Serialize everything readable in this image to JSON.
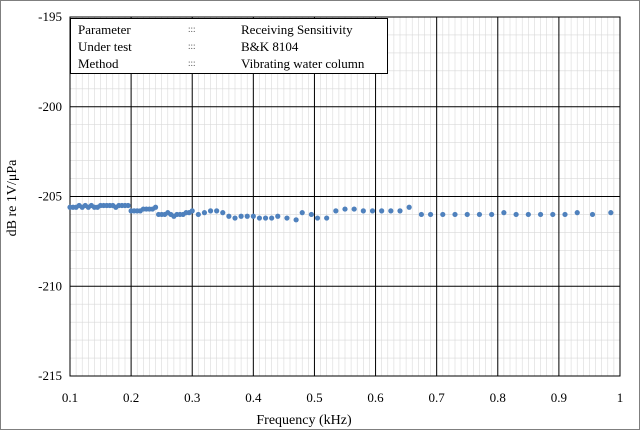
{
  "chart_data": {
    "type": "scatter",
    "xlabel": "Frequency (kHz)",
    "ylabel": "dB re 1V/μPa",
    "xlim": [
      0.1,
      1.0
    ],
    "ylim": [
      -215,
      -195
    ],
    "x_ticks": [
      "0.1",
      "0.2",
      "0.3",
      "0.4",
      "0.5",
      "0.6",
      "0.7",
      "0.8",
      "0.9",
      "1"
    ],
    "y_ticks": [
      "-195",
      "-200",
      "-205",
      "-210",
      "-215"
    ],
    "grid": "major and minor",
    "marker_color": "#4f81bd",
    "info_box": [
      {
        "key": "Parameter",
        "sep": ":::",
        "value": "Receiving Sensitivity"
      },
      {
        "key": "Under test",
        "sep": ":::",
        "value": "B&K 8104"
      },
      {
        "key": "Method",
        "sep": ":::",
        "value": "Vibrating water column"
      }
    ],
    "series": [
      {
        "points": [
          [
            0.1,
            -205.6
          ],
          [
            0.105,
            -205.6
          ],
          [
            0.11,
            -205.6
          ],
          [
            0.115,
            -205.5
          ],
          [
            0.12,
            -205.6
          ],
          [
            0.125,
            -205.5
          ],
          [
            0.13,
            -205.6
          ],
          [
            0.135,
            -205.5
          ],
          [
            0.14,
            -205.6
          ],
          [
            0.145,
            -205.6
          ],
          [
            0.15,
            -205.5
          ],
          [
            0.155,
            -205.5
          ],
          [
            0.16,
            -205.5
          ],
          [
            0.165,
            -205.5
          ],
          [
            0.17,
            -205.5
          ],
          [
            0.175,
            -205.6
          ],
          [
            0.18,
            -205.5
          ],
          [
            0.185,
            -205.5
          ],
          [
            0.19,
            -205.5
          ],
          [
            0.195,
            -205.5
          ],
          [
            0.2,
            -205.8
          ],
          [
            0.205,
            -205.8
          ],
          [
            0.21,
            -205.8
          ],
          [
            0.215,
            -205.8
          ],
          [
            0.22,
            -205.7
          ],
          [
            0.225,
            -205.7
          ],
          [
            0.23,
            -205.7
          ],
          [
            0.235,
            -205.7
          ],
          [
            0.24,
            -205.6
          ],
          [
            0.245,
            -206.0
          ],
          [
            0.25,
            -206.0
          ],
          [
            0.255,
            -206.0
          ],
          [
            0.26,
            -205.9
          ],
          [
            0.265,
            -206.0
          ],
          [
            0.27,
            -206.1
          ],
          [
            0.275,
            -206.0
          ],
          [
            0.28,
            -206.0
          ],
          [
            0.285,
            -206.0
          ],
          [
            0.29,
            -205.9
          ],
          [
            0.295,
            -205.9
          ],
          [
            0.3,
            -205.8
          ],
          [
            0.31,
            -206.0
          ],
          [
            0.32,
            -205.9
          ],
          [
            0.33,
            -205.8
          ],
          [
            0.34,
            -205.8
          ],
          [
            0.35,
            -205.9
          ],
          [
            0.36,
            -206.1
          ],
          [
            0.37,
            -206.2
          ],
          [
            0.38,
            -206.1
          ],
          [
            0.39,
            -206.1
          ],
          [
            0.4,
            -206.1
          ],
          [
            0.41,
            -206.2
          ],
          [
            0.42,
            -206.2
          ],
          [
            0.43,
            -206.2
          ],
          [
            0.44,
            -206.1
          ],
          [
            0.455,
            -206.2
          ],
          [
            0.47,
            -206.3
          ],
          [
            0.48,
            -205.9
          ],
          [
            0.495,
            -206.0
          ],
          [
            0.505,
            -206.2
          ],
          [
            0.52,
            -206.2
          ],
          [
            0.535,
            -205.8
          ],
          [
            0.55,
            -205.7
          ],
          [
            0.565,
            -205.7
          ],
          [
            0.58,
            -205.8
          ],
          [
            0.595,
            -205.8
          ],
          [
            0.61,
            -205.8
          ],
          [
            0.625,
            -205.8
          ],
          [
            0.64,
            -205.8
          ],
          [
            0.655,
            -205.6
          ],
          [
            0.675,
            -206.0
          ],
          [
            0.69,
            -206.0
          ],
          [
            0.71,
            -206.0
          ],
          [
            0.73,
            -206.0
          ],
          [
            0.75,
            -206.0
          ],
          [
            0.77,
            -206.0
          ],
          [
            0.79,
            -206.0
          ],
          [
            0.81,
            -205.9
          ],
          [
            0.83,
            -206.0
          ],
          [
            0.85,
            -206.0
          ],
          [
            0.87,
            -206.0
          ],
          [
            0.89,
            -206.0
          ],
          [
            0.91,
            -206.0
          ],
          [
            0.93,
            -205.9
          ],
          [
            0.955,
            -206.0
          ],
          [
            0.985,
            -205.9
          ]
        ]
      }
    ]
  }
}
